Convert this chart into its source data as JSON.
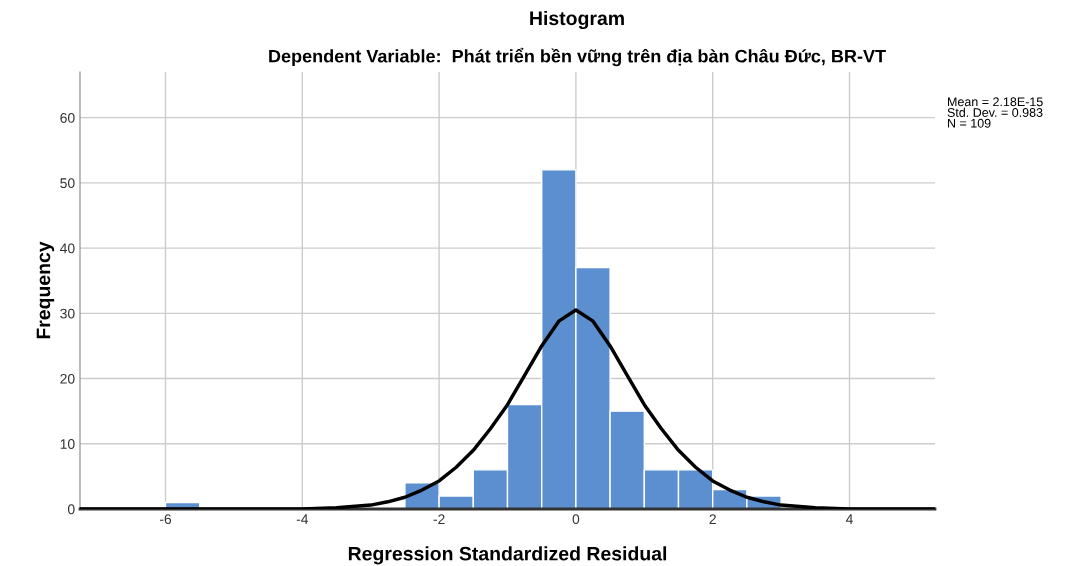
{
  "chart_data": {
    "type": "histogram",
    "title": "Histogram",
    "subtitle": "Dependent Variable:  Phát triển bền vững trên địa bàn Châu Đức, BR-VT",
    "xlabel": "Regression Standardized Residual",
    "ylabel": "Frequency",
    "bins": [
      -6,
      -5.5,
      -5,
      -4.5,
      -4,
      -3.5,
      -3,
      -2.5,
      -2,
      -1.5,
      -1,
      -0.5,
      0,
      0.5,
      1,
      1.5,
      2,
      2.5,
      3
    ],
    "values": [
      1,
      0,
      0,
      0,
      0,
      0,
      0,
      4,
      2,
      6,
      16,
      52,
      37,
      15,
      6,
      6,
      3,
      2
    ],
    "color": "#5b8fcf",
    "series": [
      {
        "type": "line",
        "color": "#000000",
        "x": [
          -7.25,
          -4,
          -3.5,
          -3,
          -2.75,
          -2.5,
          -2.25,
          -2,
          -1.75,
          -1.5,
          -1.25,
          -1,
          -0.75,
          -0.5,
          -0.25,
          0,
          0.25,
          0.5,
          0.75,
          1,
          1.25,
          1.5,
          1.75,
          2,
          2.25,
          2.5,
          2.75,
          3,
          3.5,
          4,
          5.25
        ],
        "values": [
          0,
          0,
          0.2,
          0.6,
          1.1,
          1.8,
          2.9,
          4.3,
          6.4,
          9,
          12.3,
          16,
          20.5,
          25,
          28.8,
          30.5,
          28.8,
          25,
          20.5,
          16,
          12.3,
          9,
          6.4,
          4.3,
          2.9,
          1.8,
          1.1,
          0.6,
          0.2,
          0,
          0
        ]
      }
    ],
    "xlim": [
      -7.25,
      5.25
    ],
    "ylim": [
      0,
      67
    ],
    "xticks": [
      -6,
      -4,
      -2,
      0,
      2,
      4
    ],
    "yticks": [
      0,
      10,
      20,
      30,
      40,
      50,
      60
    ],
    "grid": true,
    "annotations": [
      "Mean = 2.18E-15\nStd. Dev. = 0.983\nN = 109"
    ]
  }
}
